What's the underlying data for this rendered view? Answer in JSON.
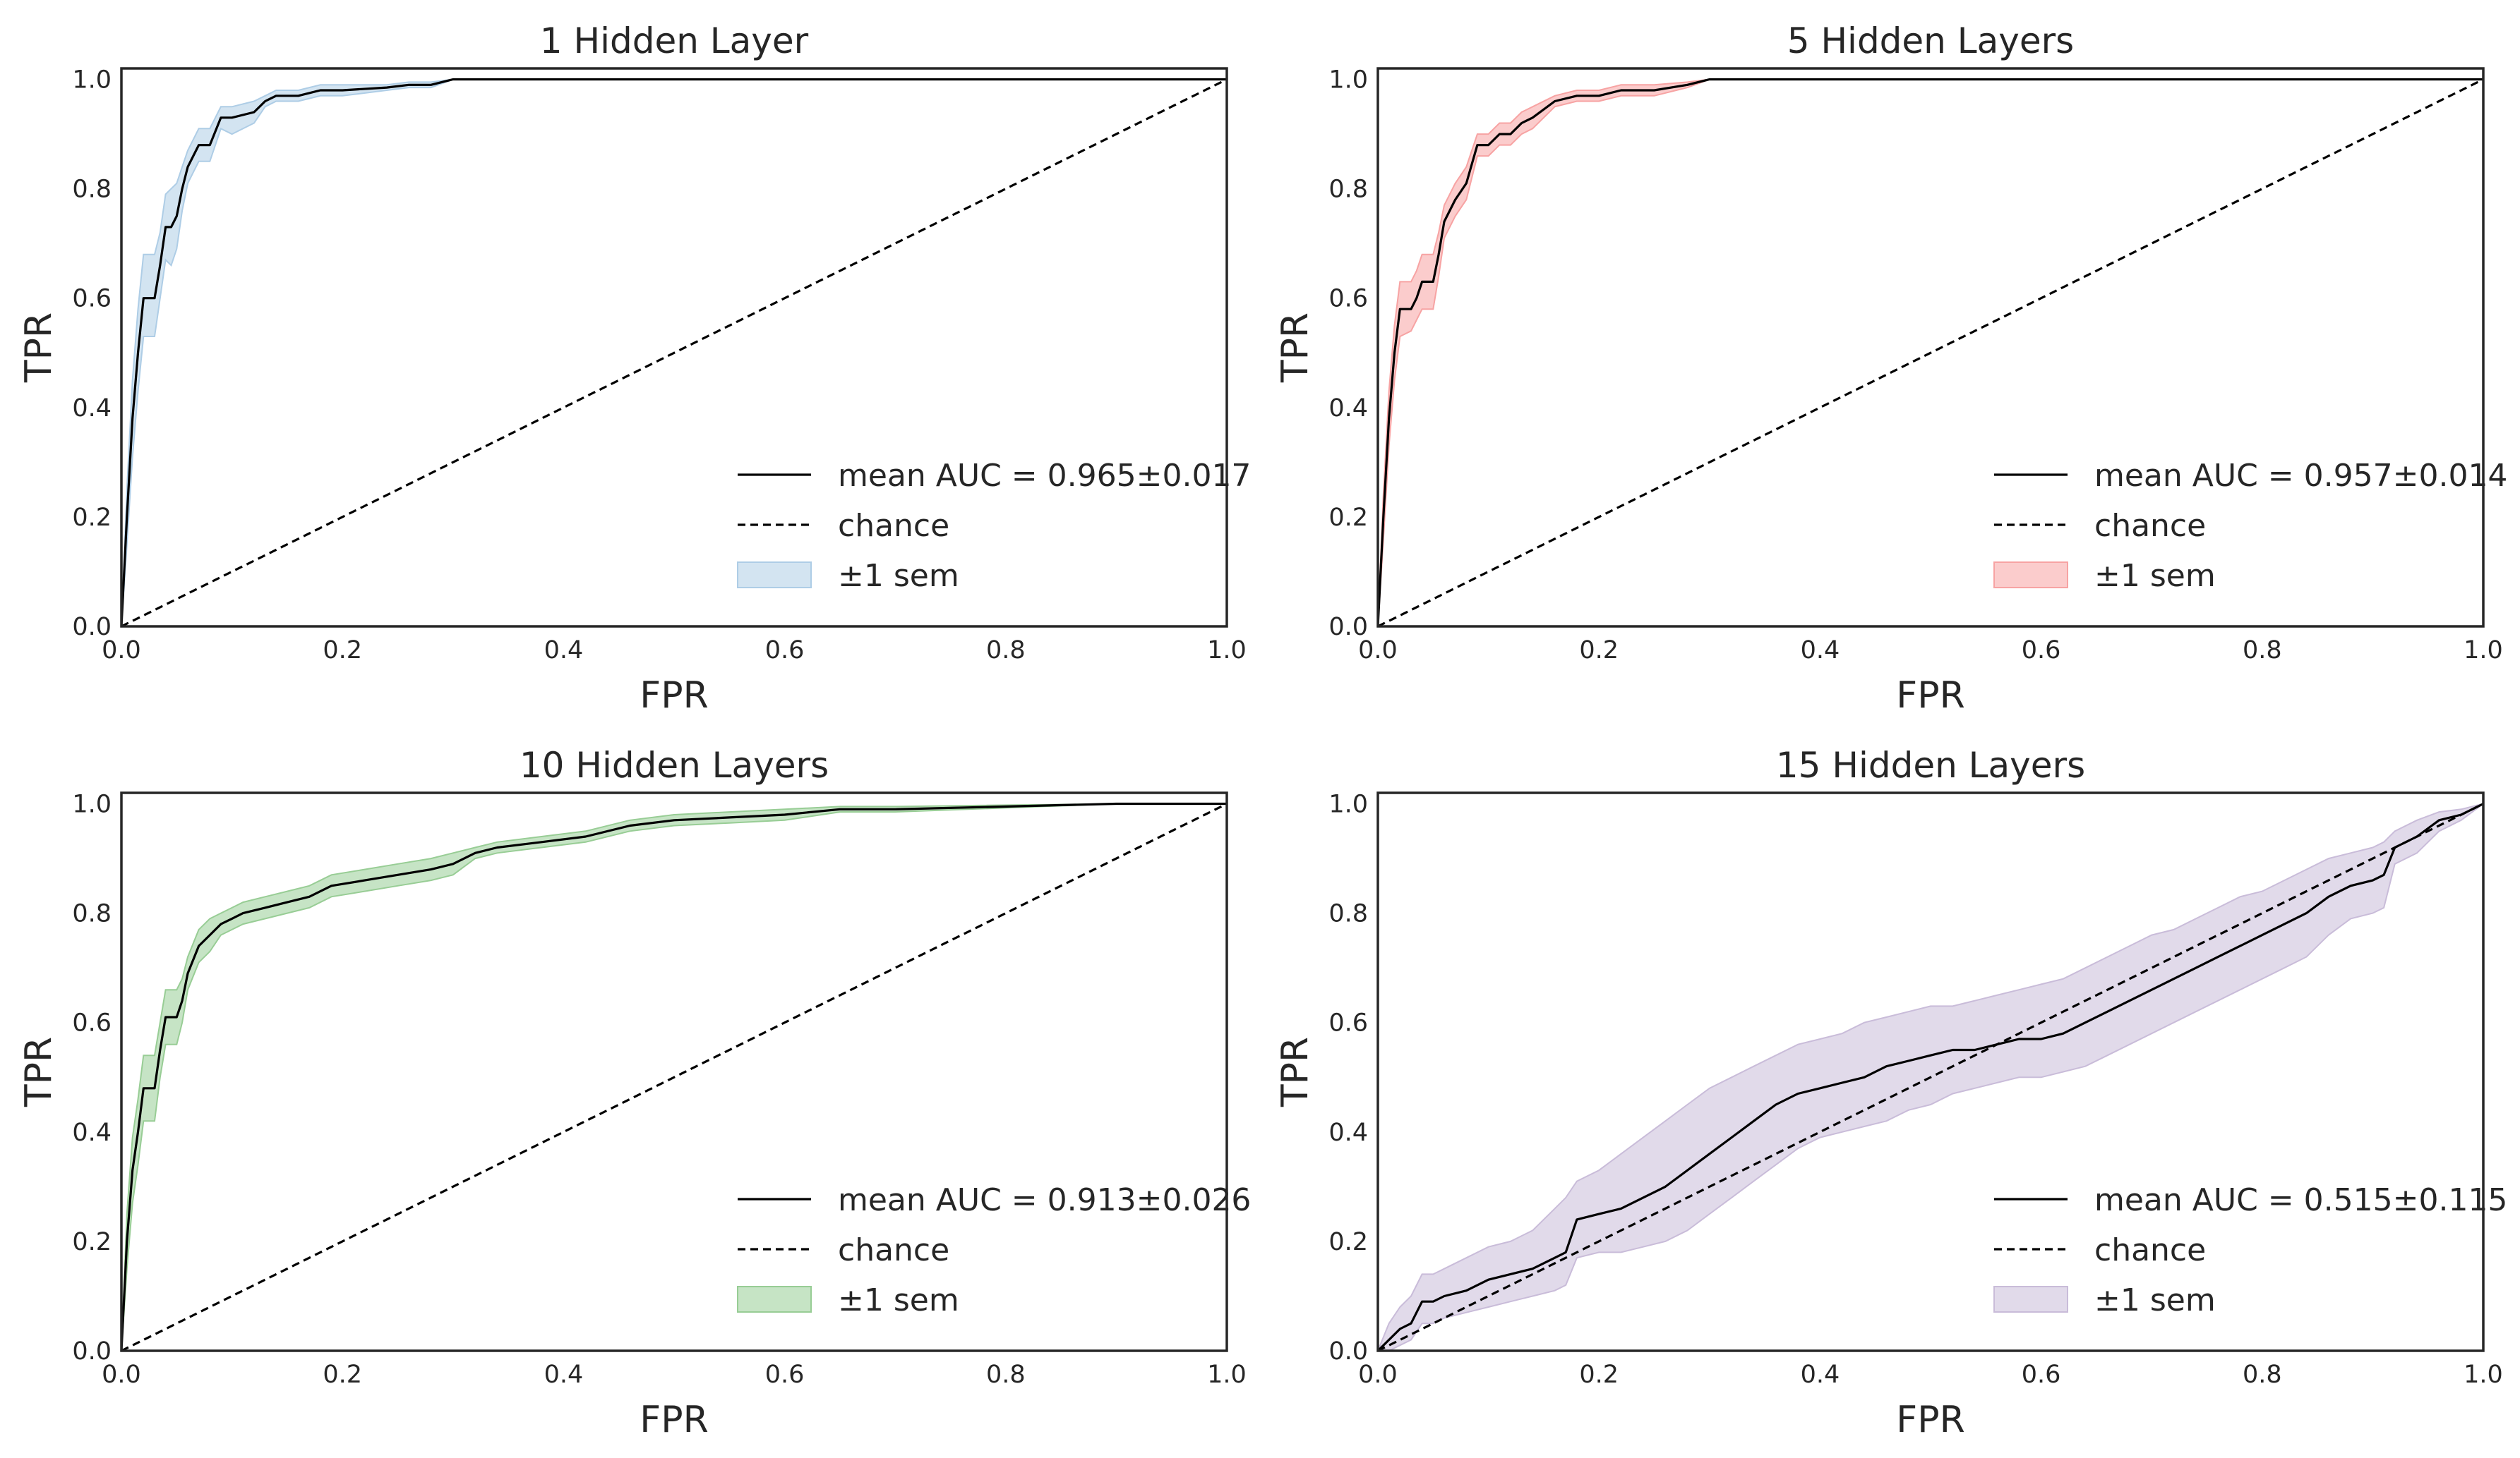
{
  "chart_data": [
    {
      "type": "line",
      "title": "1 Hidden Layer",
      "xlabel": "FPR",
      "ylabel": "TPR",
      "xlim": [
        0,
        1
      ],
      "ylim": [
        0,
        1.02
      ],
      "xticks": [
        "0.0",
        "0.2",
        "0.4",
        "0.6",
        "0.8",
        "1.0"
      ],
      "yticks": [
        "0.0",
        "0.2",
        "0.4",
        "0.6",
        "0.8",
        "1.0"
      ],
      "grid": false,
      "legend_position": "lower-right",
      "band_color": "#aecde6",
      "series": [
        {
          "name": "mean AUC = 0.965±0.017",
          "style": "solid",
          "color": "#000000",
          "x": [
            0,
            0.005,
            0.01,
            0.015,
            0.02,
            0.03,
            0.035,
            0.04,
            0.045,
            0.05,
            0.055,
            0.06,
            0.065,
            0.07,
            0.08,
            0.09,
            0.1,
            0.12,
            0.13,
            0.14,
            0.16,
            0.18,
            0.2,
            0.24,
            0.26,
            0.28,
            0.3,
            0.35,
            0.37,
            1.0
          ],
          "y": [
            0,
            0.2,
            0.38,
            0.5,
            0.6,
            0.6,
            0.66,
            0.73,
            0.73,
            0.75,
            0.8,
            0.84,
            0.86,
            0.88,
            0.88,
            0.93,
            0.93,
            0.94,
            0.96,
            0.97,
            0.97,
            0.98,
            0.98,
            0.985,
            0.99,
            0.99,
            1.0,
            1.0,
            1.0,
            1.0
          ]
        },
        {
          "name": "chance",
          "style": "dashed",
          "color": "#000000",
          "x": [
            0,
            1
          ],
          "y": [
            0,
            1
          ]
        }
      ],
      "band": {
        "name": "±1 sem",
        "x": [
          0,
          0.005,
          0.01,
          0.015,
          0.02,
          0.03,
          0.035,
          0.04,
          0.045,
          0.05,
          0.055,
          0.06,
          0.065,
          0.07,
          0.08,
          0.09,
          0.1,
          0.12,
          0.13,
          0.14,
          0.16,
          0.18,
          0.2,
          0.24,
          0.26,
          0.28,
          0.3,
          0.35,
          0.37,
          1.0
        ],
        "upper": [
          0,
          0.25,
          0.45,
          0.58,
          0.68,
          0.68,
          0.72,
          0.79,
          0.8,
          0.81,
          0.84,
          0.87,
          0.89,
          0.91,
          0.91,
          0.95,
          0.95,
          0.96,
          0.97,
          0.98,
          0.98,
          0.99,
          0.99,
          0.99,
          0.995,
          0.995,
          1.0,
          1.0,
          1.0,
          1.0
        ],
        "lower": [
          0,
          0.15,
          0.31,
          0.43,
          0.53,
          0.53,
          0.6,
          0.67,
          0.66,
          0.69,
          0.76,
          0.81,
          0.83,
          0.85,
          0.85,
          0.91,
          0.9,
          0.92,
          0.95,
          0.96,
          0.96,
          0.97,
          0.97,
          0.98,
          0.985,
          0.985,
          1.0,
          1.0,
          1.0,
          1.0
        ]
      }
    },
    {
      "type": "line",
      "title": "5 Hidden Layers",
      "xlabel": "FPR",
      "ylabel": "TPR",
      "xlim": [
        0,
        1
      ],
      "ylim": [
        0,
        1.02
      ],
      "xticks": [
        "0.0",
        "0.2",
        "0.4",
        "0.6",
        "0.8",
        "1.0"
      ],
      "yticks": [
        "0.0",
        "0.2",
        "0.4",
        "0.6",
        "0.8",
        "1.0"
      ],
      "grid": false,
      "legend_position": "lower-right",
      "band_color": "#f7a3a3",
      "series": [
        {
          "name": "mean AUC = 0.957±0.014",
          "style": "solid",
          "color": "#000000",
          "x": [
            0,
            0.005,
            0.01,
            0.015,
            0.02,
            0.03,
            0.035,
            0.04,
            0.045,
            0.05,
            0.055,
            0.06,
            0.065,
            0.07,
            0.08,
            0.09,
            0.1,
            0.11,
            0.12,
            0.13,
            0.14,
            0.16,
            0.18,
            0.2,
            0.22,
            0.25,
            0.28,
            0.3,
            0.42,
            1.0
          ],
          "y": [
            0,
            0.2,
            0.38,
            0.5,
            0.58,
            0.58,
            0.6,
            0.63,
            0.63,
            0.63,
            0.68,
            0.74,
            0.76,
            0.78,
            0.81,
            0.88,
            0.88,
            0.9,
            0.9,
            0.92,
            0.93,
            0.96,
            0.97,
            0.97,
            0.98,
            0.98,
            0.99,
            1.0,
            1.0,
            1.0
          ]
        },
        {
          "name": "chance",
          "style": "dashed",
          "color": "#000000",
          "x": [
            0,
            1
          ],
          "y": [
            0,
            1
          ]
        }
      ],
      "band": {
        "name": "±1 sem",
        "x": [
          0,
          0.005,
          0.01,
          0.015,
          0.02,
          0.03,
          0.035,
          0.04,
          0.045,
          0.05,
          0.055,
          0.06,
          0.065,
          0.07,
          0.08,
          0.09,
          0.1,
          0.11,
          0.12,
          0.13,
          0.14,
          0.16,
          0.18,
          0.2,
          0.22,
          0.25,
          0.28,
          0.3,
          0.42,
          1.0
        ],
        "upper": [
          0,
          0.24,
          0.43,
          0.55,
          0.63,
          0.63,
          0.65,
          0.68,
          0.68,
          0.68,
          0.72,
          0.77,
          0.79,
          0.81,
          0.84,
          0.9,
          0.9,
          0.92,
          0.92,
          0.94,
          0.95,
          0.97,
          0.98,
          0.98,
          0.99,
          0.99,
          0.995,
          1.0,
          1.0,
          1.0
        ],
        "lower": [
          0,
          0.16,
          0.33,
          0.45,
          0.53,
          0.54,
          0.56,
          0.58,
          0.58,
          0.58,
          0.64,
          0.71,
          0.73,
          0.75,
          0.78,
          0.86,
          0.86,
          0.88,
          0.88,
          0.9,
          0.91,
          0.95,
          0.96,
          0.96,
          0.97,
          0.97,
          0.985,
          1.0,
          1.0,
          1.0
        ]
      }
    },
    {
      "type": "line",
      "title": "10 Hidden Layers",
      "xlabel": "FPR",
      "ylabel": "TPR",
      "xlim": [
        0,
        1
      ],
      "ylim": [
        0,
        1.02
      ],
      "xticks": [
        "0.0",
        "0.2",
        "0.4",
        "0.6",
        "0.8",
        "1.0"
      ],
      "yticks": [
        "0.0",
        "0.2",
        "0.4",
        "0.6",
        "0.8",
        "1.0"
      ],
      "grid": false,
      "legend_position": "lower-right",
      "band_color": "#98cd95",
      "series": [
        {
          "name": "mean AUC = 0.913±0.026",
          "style": "solid",
          "color": "#000000",
          "x": [
            0,
            0.005,
            0.01,
            0.015,
            0.02,
            0.025,
            0.03,
            0.035,
            0.04,
            0.05,
            0.055,
            0.06,
            0.07,
            0.08,
            0.09,
            0.1,
            0.11,
            0.13,
            0.15,
            0.17,
            0.19,
            0.22,
            0.25,
            0.28,
            0.3,
            0.32,
            0.34,
            0.38,
            0.42,
            0.46,
            0.5,
            0.55,
            0.6,
            0.65,
            0.7,
            0.9,
            1.0
          ],
          "y": [
            0,
            0.2,
            0.33,
            0.4,
            0.48,
            0.48,
            0.48,
            0.55,
            0.61,
            0.61,
            0.64,
            0.69,
            0.74,
            0.76,
            0.78,
            0.79,
            0.8,
            0.81,
            0.82,
            0.83,
            0.85,
            0.86,
            0.87,
            0.88,
            0.89,
            0.91,
            0.92,
            0.93,
            0.94,
            0.96,
            0.97,
            0.975,
            0.98,
            0.99,
            0.99,
            1.0,
            1.0
          ]
        },
        {
          "name": "chance",
          "style": "dashed",
          "color": "#000000",
          "x": [
            0,
            1
          ],
          "y": [
            0,
            1
          ]
        }
      ],
      "band": {
        "name": "±1 sem",
        "x": [
          0,
          0.005,
          0.01,
          0.015,
          0.02,
          0.025,
          0.03,
          0.035,
          0.04,
          0.05,
          0.055,
          0.06,
          0.07,
          0.08,
          0.09,
          0.1,
          0.11,
          0.13,
          0.15,
          0.17,
          0.19,
          0.22,
          0.25,
          0.28,
          0.3,
          0.32,
          0.34,
          0.38,
          0.42,
          0.46,
          0.5,
          0.55,
          0.6,
          0.65,
          0.7,
          0.9,
          1.0
        ],
        "upper": [
          0,
          0.25,
          0.39,
          0.46,
          0.54,
          0.54,
          0.54,
          0.6,
          0.66,
          0.66,
          0.68,
          0.72,
          0.77,
          0.79,
          0.8,
          0.81,
          0.82,
          0.83,
          0.84,
          0.85,
          0.87,
          0.88,
          0.89,
          0.9,
          0.91,
          0.92,
          0.93,
          0.94,
          0.95,
          0.97,
          0.98,
          0.985,
          0.99,
          0.995,
          0.995,
          1.0,
          1.0
        ],
        "lower": [
          0,
          0.15,
          0.27,
          0.34,
          0.42,
          0.42,
          0.42,
          0.5,
          0.56,
          0.56,
          0.6,
          0.66,
          0.71,
          0.73,
          0.76,
          0.77,
          0.78,
          0.79,
          0.8,
          0.81,
          0.83,
          0.84,
          0.85,
          0.86,
          0.87,
          0.9,
          0.91,
          0.92,
          0.93,
          0.95,
          0.96,
          0.965,
          0.97,
          0.985,
          0.985,
          1.0,
          1.0
        ]
      }
    },
    {
      "type": "line",
      "title": "15 Hidden Layers",
      "xlabel": "FPR",
      "ylabel": "TPR",
      "xlim": [
        0,
        1
      ],
      "ylim": [
        0,
        1.02
      ],
      "xticks": [
        "0.0",
        "0.2",
        "0.4",
        "0.6",
        "0.8",
        "1.0"
      ],
      "yticks": [
        "0.0",
        "0.2",
        "0.4",
        "0.6",
        "0.8",
        "1.0"
      ],
      "grid": false,
      "legend_position": "lower-right",
      "band_color": "#c9bcd9",
      "series": [
        {
          "name": "mean AUC = 0.515±0.115",
          "style": "solid",
          "color": "#000000",
          "x": [
            0,
            0.01,
            0.02,
            0.03,
            0.04,
            0.05,
            0.06,
            0.08,
            0.1,
            0.12,
            0.14,
            0.16,
            0.17,
            0.18,
            0.2,
            0.22,
            0.24,
            0.26,
            0.28,
            0.3,
            0.32,
            0.34,
            0.36,
            0.38,
            0.4,
            0.42,
            0.44,
            0.46,
            0.48,
            0.5,
            0.52,
            0.54,
            0.56,
            0.58,
            0.6,
            0.62,
            0.64,
            0.66,
            0.68,
            0.7,
            0.72,
            0.74,
            0.76,
            0.78,
            0.8,
            0.82,
            0.84,
            0.86,
            0.88,
            0.9,
            0.91,
            0.92,
            0.94,
            0.96,
            0.98,
            1.0
          ],
          "y": [
            0,
            0.02,
            0.04,
            0.05,
            0.09,
            0.09,
            0.1,
            0.11,
            0.13,
            0.14,
            0.15,
            0.17,
            0.18,
            0.24,
            0.25,
            0.26,
            0.28,
            0.3,
            0.33,
            0.36,
            0.39,
            0.42,
            0.45,
            0.47,
            0.48,
            0.49,
            0.5,
            0.52,
            0.53,
            0.54,
            0.55,
            0.55,
            0.56,
            0.57,
            0.57,
            0.58,
            0.6,
            0.62,
            0.64,
            0.66,
            0.68,
            0.7,
            0.72,
            0.74,
            0.76,
            0.78,
            0.8,
            0.83,
            0.85,
            0.86,
            0.87,
            0.92,
            0.94,
            0.97,
            0.98,
            1.0
          ]
        },
        {
          "name": "chance",
          "style": "dashed",
          "color": "#000000",
          "x": [
            0,
            1
          ],
          "y": [
            0,
            1
          ]
        }
      ],
      "band": {
        "name": "±1 sem",
        "x": [
          0,
          0.01,
          0.02,
          0.03,
          0.04,
          0.05,
          0.06,
          0.08,
          0.1,
          0.12,
          0.14,
          0.16,
          0.17,
          0.18,
          0.2,
          0.22,
          0.24,
          0.26,
          0.28,
          0.3,
          0.32,
          0.34,
          0.36,
          0.38,
          0.4,
          0.42,
          0.44,
          0.46,
          0.48,
          0.5,
          0.52,
          0.54,
          0.56,
          0.58,
          0.6,
          0.62,
          0.64,
          0.66,
          0.68,
          0.7,
          0.72,
          0.74,
          0.76,
          0.78,
          0.8,
          0.82,
          0.84,
          0.86,
          0.88,
          0.9,
          0.91,
          0.92,
          0.94,
          0.96,
          0.98,
          1.0
        ],
        "upper": [
          0,
          0.05,
          0.08,
          0.1,
          0.14,
          0.14,
          0.15,
          0.17,
          0.19,
          0.2,
          0.22,
          0.26,
          0.28,
          0.31,
          0.33,
          0.36,
          0.39,
          0.42,
          0.45,
          0.48,
          0.5,
          0.52,
          0.54,
          0.56,
          0.57,
          0.58,
          0.6,
          0.61,
          0.62,
          0.63,
          0.63,
          0.64,
          0.65,
          0.66,
          0.67,
          0.68,
          0.7,
          0.72,
          0.74,
          0.76,
          0.77,
          0.79,
          0.81,
          0.83,
          0.84,
          0.86,
          0.88,
          0.9,
          0.91,
          0.92,
          0.93,
          0.95,
          0.97,
          0.985,
          0.99,
          1.0
        ],
        "lower": [
          0,
          0.0,
          0.01,
          0.02,
          0.05,
          0.05,
          0.06,
          0.07,
          0.08,
          0.09,
          0.1,
          0.11,
          0.12,
          0.17,
          0.18,
          0.18,
          0.19,
          0.2,
          0.22,
          0.25,
          0.28,
          0.31,
          0.34,
          0.37,
          0.39,
          0.4,
          0.41,
          0.42,
          0.44,
          0.45,
          0.47,
          0.48,
          0.49,
          0.5,
          0.5,
          0.51,
          0.52,
          0.54,
          0.56,
          0.58,
          0.6,
          0.62,
          0.64,
          0.66,
          0.68,
          0.7,
          0.72,
          0.76,
          0.79,
          0.8,
          0.81,
          0.89,
          0.91,
          0.95,
          0.97,
          1.0
        ]
      }
    }
  ]
}
